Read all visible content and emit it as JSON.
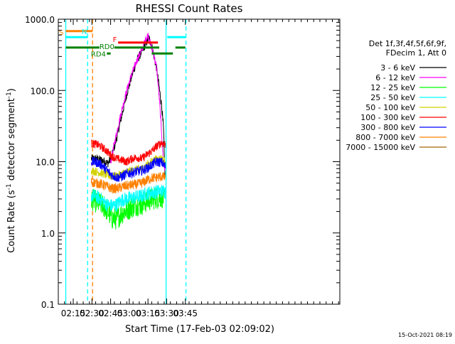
{
  "chart_data": {
    "type": "line",
    "title": "RHESSI Count Rates",
    "xlabel": "Start Time (17-Feb-03 02:09:02)",
    "ylabel_main": "Count Rate (s",
    "ylabel_sup": "-1",
    "ylabel_tail": " detector segment",
    "ylabel_sup2": "-1",
    "ylabel_end": ")",
    "log_y": true,
    "xlim_min": [
      5,
      231
    ],
    "ylim": [
      0.1,
      1000
    ],
    "x_ticks": [
      {
        "t": 17,
        "label": "02:15"
      },
      {
        "t": 32,
        "label": "02:30"
      },
      {
        "t": 47,
        "label": "02:45"
      },
      {
        "t": 62,
        "label": "03:00"
      },
      {
        "t": 77,
        "label": "03:15"
      },
      {
        "t": 92,
        "label": "03:30"
      },
      {
        "t": 107,
        "label": "03:45"
      }
    ],
    "y_ticks": [
      {
        "v": 1000,
        "label": "1000.0"
      },
      {
        "v": 100,
        "label": "100.0"
      },
      {
        "v": 10,
        "label": "10.0"
      },
      {
        "v": 1,
        "label": "1.0"
      },
      {
        "v": 0.1,
        "label": "0.1"
      }
    ],
    "legend_header": [
      "Det 1f,3f,4f,5f,6f,9f,",
      "FDecim 1, Att 0"
    ],
    "series": [
      {
        "name": "3 - 6 keV",
        "color": "#000000",
        "values": [
          [
            31.5,
            11
          ],
          [
            35,
            11
          ],
          [
            40,
            10.5
          ],
          [
            45,
            9.5
          ],
          [
            48,
            12
          ],
          [
            52,
            22
          ],
          [
            56,
            45
          ],
          [
            60,
            90
          ],
          [
            64,
            160
          ],
          [
            68,
            260
          ],
          [
            72,
            350
          ],
          [
            76,
            480
          ],
          [
            77.5,
            560
          ],
          [
            80,
            420
          ],
          [
            84,
            200
          ],
          [
            88,
            60
          ],
          [
            89.5,
            28
          ],
          [
            90.5,
            7
          ],
          [
            91,
            5.5
          ]
        ]
      },
      {
        "name": "6 - 12 keV",
        "color": "#ff00ff",
        "values": [
          [
            47,
            9.5
          ],
          [
            50,
            18
          ],
          [
            55,
            45
          ],
          [
            60,
            100
          ],
          [
            64,
            170
          ],
          [
            68,
            260
          ],
          [
            72,
            370
          ],
          [
            75,
            520
          ],
          [
            77,
            600
          ],
          [
            79,
            450
          ],
          [
            82,
            300
          ],
          [
            84,
            200
          ],
          [
            86,
            80
          ],
          [
            88,
            25
          ],
          [
            89.5,
            9
          ],
          [
            91,
            7.5
          ]
        ]
      },
      {
        "name": "12 - 25 keV",
        "color": "#00ff00",
        "values": [
          [
            31.5,
            3
          ],
          [
            36,
            2.7
          ],
          [
            40,
            2.5
          ],
          [
            44,
            2.1
          ],
          [
            48,
            1.6
          ],
          [
            52,
            1.6
          ],
          [
            56,
            1.9
          ],
          [
            60,
            2.1
          ],
          [
            64,
            2.3
          ],
          [
            68,
            2.5
          ],
          [
            72,
            2.5
          ],
          [
            76,
            2.8
          ],
          [
            80,
            3
          ],
          [
            84,
            3.1
          ],
          [
            88,
            3.2
          ],
          [
            91,
            3
          ]
        ]
      },
      {
        "name": "25 - 50 keV",
        "color": "#00ffff",
        "values": [
          [
            31.5,
            3.4
          ],
          [
            36,
            3.2
          ],
          [
            40,
            2.9
          ],
          [
            44,
            2.5
          ],
          [
            48,
            2.4
          ],
          [
            52,
            2.5
          ],
          [
            56,
            2.9
          ],
          [
            60,
            3
          ],
          [
            64,
            3.1
          ],
          [
            68,
            3.2
          ],
          [
            72,
            3.3
          ],
          [
            76,
            3.6
          ],
          [
            80,
            3.7
          ],
          [
            84,
            3.8
          ],
          [
            88,
            3.9
          ],
          [
            91,
            3.8
          ]
        ]
      },
      {
        "name": "50 - 100 keV",
        "color": "#d2d200",
        "values": [
          [
            31.5,
            7.5
          ],
          [
            36,
            7.2
          ],
          [
            40,
            6.9
          ],
          [
            44,
            6.5
          ],
          [
            48,
            6.2
          ],
          [
            52,
            6.3
          ],
          [
            56,
            6.7
          ],
          [
            60,
            7.2
          ],
          [
            64,
            7.5
          ],
          [
            68,
            7.8
          ],
          [
            72,
            8
          ],
          [
            76,
            9
          ],
          [
            80,
            10
          ],
          [
            84,
            11
          ],
          [
            88,
            11
          ],
          [
            91,
            10
          ]
        ]
      },
      {
        "name": "100 - 300 keV",
        "color": "#ff0000",
        "values": [
          [
            31.5,
            18
          ],
          [
            36,
            17.5
          ],
          [
            40,
            16
          ],
          [
            44,
            14
          ],
          [
            48,
            12
          ],
          [
            52,
            11
          ],
          [
            56,
            10.5
          ],
          [
            60,
            10
          ],
          [
            64,
            11
          ],
          [
            68,
            11.5
          ],
          [
            72,
            11
          ],
          [
            76,
            12.5
          ],
          [
            80,
            14
          ],
          [
            84,
            16.5
          ],
          [
            88,
            18.5
          ],
          [
            91,
            17.5
          ]
        ]
      },
      {
        "name": "300 - 800 keV",
        "color": "#0000ff",
        "values": [
          [
            31.5,
            10
          ],
          [
            36,
            9.8
          ],
          [
            40,
            9
          ],
          [
            44,
            7.5
          ],
          [
            48,
            6.5
          ],
          [
            52,
            6
          ],
          [
            56,
            6.2
          ],
          [
            60,
            6.8
          ],
          [
            64,
            7
          ],
          [
            68,
            7.3
          ],
          [
            72,
            7.5
          ],
          [
            76,
            8
          ],
          [
            80,
            9
          ],
          [
            84,
            10
          ],
          [
            88,
            9.8
          ],
          [
            91,
            8.5
          ]
        ]
      },
      {
        "name": "800 - 7000 keV",
        "color": "#ff8000",
        "values": [
          [
            31.5,
            5.2
          ],
          [
            36,
            5
          ],
          [
            40,
            4.8
          ],
          [
            44,
            4.5
          ],
          [
            48,
            4.2
          ],
          [
            52,
            4.2
          ],
          [
            56,
            4.4
          ],
          [
            60,
            4.6
          ],
          [
            64,
            4.7
          ],
          [
            68,
            4.8
          ],
          [
            72,
            5
          ],
          [
            76,
            5.5
          ],
          [
            80,
            5.9
          ],
          [
            84,
            6
          ],
          [
            88,
            6.2
          ],
          [
            91,
            6
          ]
        ]
      },
      {
        "name": "7000 - 15000 keV",
        "color": "#a06400",
        "values": []
      }
    ],
    "flags": [
      {
        "label": "S",
        "color": "#ff8000",
        "level": 680,
        "segments": [
          [
            11,
            32.5
          ]
        ]
      },
      {
        "name": "N",
        "label": "N",
        "color": "#00ffff",
        "level": 560,
        "segments": [
          [
            11,
            28.5
          ],
          [
            92.5,
            107.5
          ]
        ]
      },
      {
        "label": "F",
        "color": "#ff0000",
        "level": 470,
        "segments": [
          [
            53,
            85
          ]
        ]
      },
      {
        "label": "RD0",
        "color": "#008000",
        "level": 400,
        "segments": [
          [
            11,
            38
          ],
          [
            50,
            86
          ],
          [
            99,
            107
          ]
        ]
      },
      {
        "label": "RD4",
        "color": "#008000",
        "level": 330,
        "segments": [
          [
            44,
            47
          ],
          [
            80,
            97
          ]
        ]
      }
    ],
    "vlines": [
      {
        "t": 11,
        "color": "#00ffff",
        "style": "solid"
      },
      {
        "t": 28.5,
        "color": "#00ffff",
        "style": "dashed"
      },
      {
        "t": 32.5,
        "color": "#ff8000",
        "style": "dashed"
      },
      {
        "t": 91.5,
        "color": "#00ffff",
        "style": "solid"
      },
      {
        "t": 107.5,
        "color": "#00ffff",
        "style": "dashed"
      }
    ]
  },
  "footer": {
    "timestamp": "15-Oct-2021 08:19"
  }
}
